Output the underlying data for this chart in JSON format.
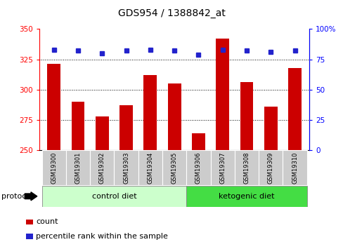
{
  "title": "GDS954 / 1388842_at",
  "samples": [
    "GSM19300",
    "GSM19301",
    "GSM19302",
    "GSM19303",
    "GSM19304",
    "GSM19305",
    "GSM19306",
    "GSM19307",
    "GSM19308",
    "GSM19309",
    "GSM19310"
  ],
  "count_values": [
    321,
    290,
    278,
    287,
    312,
    305,
    264,
    342,
    306,
    286,
    318
  ],
  "percentile_values": [
    83,
    82,
    80,
    82,
    83,
    82,
    79,
    83,
    82,
    81,
    82
  ],
  "ylim_left": [
    250,
    350
  ],
  "ylim_right": [
    0,
    100
  ],
  "yticks_left": [
    250,
    275,
    300,
    325,
    350
  ],
  "yticks_right": [
    0,
    25,
    50,
    75,
    100
  ],
  "ytick_labels_right": [
    "0",
    "25",
    "50",
    "75",
    "100%"
  ],
  "bar_color": "#cc0000",
  "dot_color": "#2222cc",
  "control_diet_indices": [
    0,
    1,
    2,
    3,
    4,
    5
  ],
  "ketogenic_diet_indices": [
    6,
    7,
    8,
    9,
    10
  ],
  "control_label": "control diet",
  "ketogenic_label": "ketogenic diet",
  "protocol_label": "protocol",
  "legend_count": "count",
  "legend_percentile": "percentile rank within the sample",
  "control_bg": "#ccffcc",
  "ketogenic_bg": "#44dd44",
  "sample_bg": "#cccccc",
  "bar_width": 0.55,
  "baseline": 250
}
